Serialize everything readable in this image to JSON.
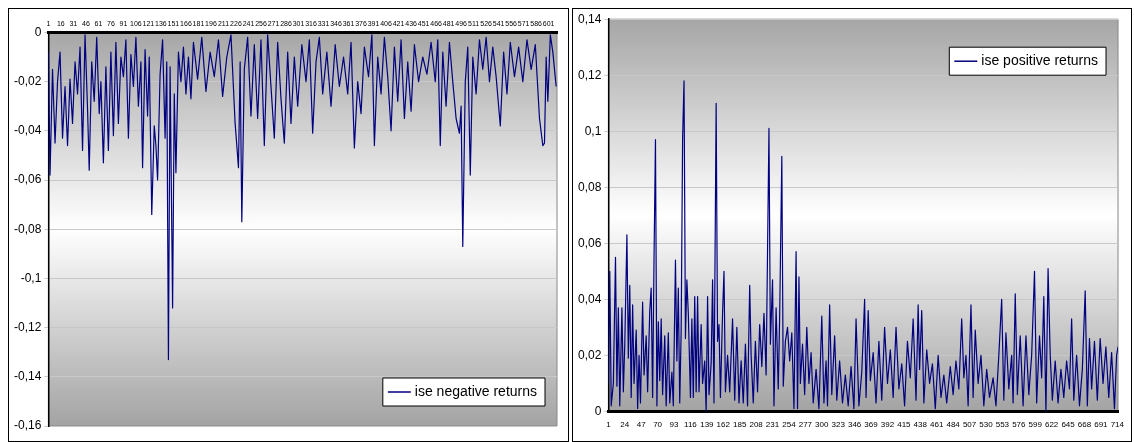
{
  "chart_data": [
    {
      "type": "line",
      "xlim": [
        1,
        611
      ],
      "xticks": [
        1,
        16,
        31,
        46,
        61,
        76,
        91,
        106,
        121,
        136,
        151,
        166,
        181,
        196,
        211,
        226,
        241,
        256,
        271,
        286,
        301,
        316,
        331,
        346,
        361,
        376,
        391,
        406,
        421,
        436,
        451,
        466,
        481,
        496,
        511,
        526,
        541,
        556,
        571,
        586,
        601
      ],
      "ylim": [
        -0.16,
        0
      ],
      "yticks": [
        {
          "value": -0.16,
          "label": "-0,16"
        },
        {
          "value": -0.14,
          "label": "-0,14"
        },
        {
          "value": -0.12,
          "label": "-0,12"
        },
        {
          "value": -0.1,
          "label": "-0,1"
        },
        {
          "value": -0.08,
          "label": "-0,08"
        },
        {
          "value": -0.06,
          "label": "-0,06"
        },
        {
          "value": -0.04,
          "label": "-0,04"
        },
        {
          "value": -0.02,
          "label": "-0,02"
        },
        {
          "value": 0,
          "label": "0"
        }
      ],
      "grid": "y",
      "legend": "bottom right",
      "series": [
        {
          "name": "ise negative returns",
          "color": "#000080",
          "x": [
            1,
            3,
            6,
            9,
            12,
            15,
            18,
            21,
            24,
            27,
            30,
            33,
            36,
            39,
            42,
            45,
            48,
            50,
            53,
            56,
            59,
            62,
            64,
            67,
            70,
            73,
            76,
            79,
            82,
            85,
            88,
            91,
            94,
            97,
            100,
            103,
            106,
            109,
            112,
            114,
            117,
            120,
            122,
            125,
            128,
            130,
            132,
            135,
            138,
            141,
            143,
            145,
            147,
            150,
            152,
            154,
            157,
            160,
            163,
            166,
            169,
            172,
            175,
            180,
            185,
            190,
            195,
            200,
            205,
            210,
            215,
            220,
            225,
            229,
            231,
            233,
            236,
            240,
            244,
            248,
            252,
            256,
            260,
            264,
            268,
            272,
            276,
            280,
            284,
            288,
            292,
            296,
            300,
            305,
            310,
            314,
            318,
            322,
            326,
            330,
            335,
            340,
            345,
            350,
            355,
            360,
            364,
            368,
            372,
            376,
            380,
            385,
            389,
            392,
            396,
            400,
            404,
            408,
            412,
            416,
            420,
            424,
            428,
            432,
            436,
            440,
            445,
            450,
            455,
            460,
            465,
            468,
            471,
            474,
            478,
            482,
            486,
            490,
            494,
            496,
            498,
            501,
            504,
            507,
            510,
            514,
            518,
            522,
            526,
            530,
            534,
            538,
            543,
            547,
            551,
            555,
            560,
            565,
            570,
            575,
            580,
            585,
            590,
            594,
            596,
            598,
            600,
            603,
            606,
            610
          ],
          "values": [
            -0.008,
            -0.058,
            -0.015,
            -0.045,
            -0.02,
            -0.008,
            -0.043,
            -0.022,
            -0.046,
            -0.019,
            -0.037,
            -0.012,
            -0.025,
            -0.006,
            -0.048,
            -0.001,
            -0.031,
            -0.056,
            -0.012,
            -0.028,
            -0.002,
            -0.033,
            -0.02,
            -0.053,
            -0.014,
            -0.048,
            -0.008,
            -0.042,
            -0.004,
            -0.037,
            -0.01,
            -0.018,
            -0.003,
            -0.043,
            -0.009,
            -0.022,
            -0.002,
            -0.03,
            -0.012,
            -0.055,
            -0.007,
            -0.034,
            -0.01,
            -0.074,
            -0.038,
            -0.046,
            -0.06,
            -0.017,
            -0.003,
            -0.043,
            -0.012,
            -0.133,
            -0.014,
            -0.112,
            -0.025,
            -0.057,
            -0.008,
            -0.02,
            -0.006,
            -0.025,
            -0.01,
            -0.027,
            -0.004,
            -0.019,
            -0.002,
            -0.024,
            -0.008,
            -0.018,
            -0.003,
            -0.026,
            -0.01,
            -0.001,
            -0.037,
            -0.055,
            -0.012,
            -0.077,
            -0.015,
            -0.002,
            -0.034,
            -0.005,
            -0.035,
            -0.003,
            -0.046,
            -0.001,
            -0.022,
            -0.043,
            -0.004,
            -0.027,
            -0.045,
            -0.008,
            -0.037,
            -0.01,
            -0.03,
            -0.005,
            -0.02,
            -0.003,
            -0.041,
            -0.012,
            -0.002,
            -0.025,
            -0.008,
            -0.03,
            -0.005,
            -0.022,
            -0.01,
            -0.025,
            -0.004,
            -0.047,
            -0.02,
            -0.033,
            -0.006,
            -0.018,
            -0.001,
            -0.046,
            -0.01,
            -0.025,
            -0.002,
            -0.018,
            -0.04,
            -0.006,
            -0.028,
            -0.003,
            -0.035,
            -0.012,
            -0.032,
            -0.005,
            -0.02,
            -0.01,
            -0.017,
            -0.004,
            -0.02,
            -0.003,
            -0.046,
            -0.008,
            -0.03,
            -0.004,
            -0.02,
            -0.035,
            -0.041,
            -0.03,
            -0.087,
            -0.02,
            -0.006,
            -0.058,
            -0.01,
            -0.025,
            -0.003,
            -0.015,
            -0.002,
            -0.02,
            -0.006,
            -0.018,
            -0.038,
            -0.008,
            -0.025,
            -0.004,
            -0.018,
            -0.006,
            -0.02,
            -0.003,
            -0.015,
            -0.005,
            -0.035,
            -0.046,
            -0.045,
            -0.01,
            -0.028,
            -0.001,
            -0.008,
            -0.022
          ]
        }
      ]
    },
    {
      "type": "line",
      "xlim": [
        1,
        715
      ],
      "xticks": [
        1,
        24,
        47,
        70,
        93,
        116,
        139,
        162,
        185,
        208,
        231,
        254,
        277,
        300,
        323,
        346,
        369,
        392,
        415,
        438,
        461,
        484,
        507,
        530,
        553,
        576,
        599,
        622,
        645,
        668,
        691,
        714
      ],
      "ylim": [
        0,
        0.14
      ],
      "yticks": [
        {
          "value": 0,
          "label": "0"
        },
        {
          "value": 0.02,
          "label": "0,02"
        },
        {
          "value": 0.04,
          "label": "0,04"
        },
        {
          "value": 0.06,
          "label": "0,06"
        },
        {
          "value": 0.08,
          "label": "0,08"
        },
        {
          "value": 0.1,
          "label": "0,1"
        },
        {
          "value": 0.12,
          "label": "0,12"
        },
        {
          "value": 0.14,
          "label": "0,14"
        }
      ],
      "grid": "y",
      "legend": "top right",
      "series": [
        {
          "name": "ise positive returns",
          "color": "#000080",
          "x": [
            1,
            3,
            5,
            8,
            11,
            13,
            15,
            17,
            20,
            22,
            24,
            27,
            29,
            31,
            33,
            35,
            37,
            40,
            42,
            44,
            46,
            49,
            51,
            54,
            56,
            59,
            61,
            63,
            65,
            67,
            69,
            71,
            73,
            75,
            77,
            80,
            82,
            85,
            87,
            90,
            92,
            95,
            97,
            99,
            101,
            103,
            105,
            107,
            109,
            111,
            113,
            116,
            118,
            120,
            122,
            124,
            126,
            128,
            131,
            133,
            136,
            138,
            140,
            142,
            145,
            147,
            149,
            152,
            154,
            156,
            158,
            161,
            163,
            165,
            168,
            171,
            175,
            178,
            181,
            184,
            187,
            190,
            193,
            196,
            199,
            201,
            204,
            207,
            210,
            213,
            216,
            219,
            222,
            226,
            228,
            231,
            233,
            236,
            239,
            241,
            244,
            246,
            249,
            252,
            255,
            258,
            261,
            264,
            266,
            268,
            270,
            273,
            276,
            279,
            282,
            285,
            288,
            292,
            296,
            300,
            303,
            306,
            308,
            311,
            314,
            318,
            321,
            325,
            329,
            333,
            337,
            341,
            345,
            348,
            352,
            356,
            360,
            362,
            365,
            368,
            372,
            376,
            380,
            384,
            388,
            392,
            396,
            400,
            404,
            408,
            412,
            416,
            420,
            424,
            428,
            432,
            435,
            437,
            440,
            443,
            447,
            451,
            455,
            459,
            463,
            467,
            471,
            475,
            480,
            484,
            488,
            492,
            496,
            499,
            502,
            505,
            509,
            512,
            515,
            519,
            523,
            527,
            531,
            535,
            540,
            544,
            548,
            552,
            555,
            558,
            562,
            566,
            568,
            571,
            574,
            578,
            582,
            586,
            590,
            594,
            598,
            601,
            605,
            608,
            611,
            614,
            617,
            620,
            623,
            627,
            631,
            635,
            639,
            643,
            647,
            650,
            653,
            657,
            661,
            665,
            669,
            672,
            675,
            678,
            682,
            686,
            690,
            694,
            698,
            702,
            706,
            710,
            713,
            715
          ],
          "values": [
            0.01,
            0.05,
            0.002,
            0.01,
            0.055,
            0.009,
            0.037,
            0.002,
            0.037,
            0.007,
            0.024,
            0.063,
            0.019,
            0.045,
            0.005,
            0.038,
            0.01,
            0.029,
            0.001,
            0.02,
            0.003,
            0.039,
            0.013,
            0.027,
            0.007,
            0.036,
            0.044,
            0.005,
            0.055,
            0.097,
            0.002,
            0.032,
            0.011,
            0.033,
            0.006,
            0.027,
            0.002,
            0.028,
            0.003,
            0.014,
            0.002,
            0.054,
            0.018,
            0.044,
            0.003,
            0.029,
            0.097,
            0.118,
            0.026,
            0.047,
            0.035,
            0.005,
            0.033,
            0.005,
            0.041,
            0.007,
            0.041,
            0.007,
            0.031,
            0.01,
            0.018,
            0,
            0.041,
            0.006,
            0.017,
            0.047,
            0.003,
            0.11,
            0.025,
            0.031,
            0.005,
            0.035,
            0.05,
            0.007,
            0.02,
            0.007,
            0.033,
            0.004,
            0.03,
            0.003,
            0.018,
            0.003,
            0.024,
            0.002,
            0.045,
            0.02,
            0.003,
            0.025,
            0.007,
            0.031,
            0.016,
            0.035,
            0.013,
            0.101,
            0.024,
            0.047,
            0.002,
            0.037,
            0.008,
            0.034,
            0.091,
            0.009,
            0.025,
            0.03,
            0.018,
            0.028,
            0.001,
            0.057,
            0.001,
            0.048,
            0.01,
            0.024,
            0.006,
            0.03,
            0.01,
            0.021,
            0.003,
            0.015,
            0.001,
            0.034,
            0.003,
            0.018,
            0.002,
            0.038,
            0.006,
            0.027,
            0.004,
            0.018,
            0.003,
            0.013,
            0.002,
            0.016,
            0.001,
            0.033,
            0.002,
            0.014,
            0.04,
            0.005,
            0.036,
            0.011,
            0.021,
            0.003,
            0.025,
            0.004,
            0.03,
            0.01,
            0.022,
            0.005,
            0.03,
            0.008,
            0.017,
            0.002,
            0.025,
            0.012,
            0.033,
            0.004,
            0.038,
            0.015,
            0.036,
            0.003,
            0.022,
            0.01,
            0.017,
            0.001,
            0.02,
            0.005,
            0.013,
            0.003,
            0.016,
            0.006,
            0.018,
            0.008,
            0.033,
            0.012,
            0.02,
            0.002,
            0.038,
            0.005,
            0.029,
            0.01,
            0.02,
            0.002,
            0.015,
            0.005,
            0.012,
            0.002,
            0.02,
            0.04,
            0.004,
            0.028,
            0.008,
            0.02,
            0.003,
            0.042,
            0.006,
            0.027,
            0.002,
            0.027,
            0.006,
            0.02,
            0.05,
            0.003,
            0.027,
            0.012,
            0.041,
            0,
            0.051,
            0.02,
            0.004,
            0.018,
            0.003,
            0.015,
            0.005,
            0.018,
            0.008,
            0.033,
            0.004,
            0.02,
            0.002,
            0.015,
            0.043,
            0.002,
            0.026,
            0.008,
            0.025,
            0.004,
            0.026,
            0.01,
            0.023,
            0.005,
            0.021,
            0.001,
            0.02,
            0.023
          ]
        }
      ]
    }
  ]
}
